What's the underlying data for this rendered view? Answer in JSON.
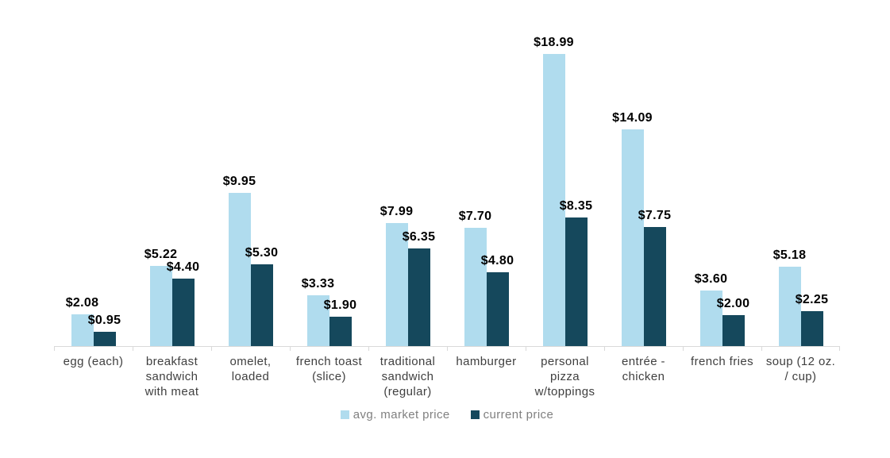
{
  "chart_data": {
    "type": "bar",
    "title": "",
    "xlabel": "",
    "ylabel": "",
    "ylim": [
      0,
      22.5
    ],
    "y_axis_visible": false,
    "gridlines": false,
    "legend_position": "bottom",
    "axis_color": "#D9D9D9",
    "data_label_color": "#000000",
    "category_label_color": "#404040",
    "legend_text_color": "#808080",
    "categories": [
      "egg (each)",
      "breakfast\nsandwich\nwith meat",
      "omelet,\nloaded",
      "french toast\n(slice)",
      "traditional\nsandwich\n(regular)",
      "hamburger",
      "personal\npizza\nw/toppings",
      "entrée -\nchicken",
      "french fries",
      "soup (12 oz.\n/ cup)"
    ],
    "series": [
      {
        "name": "avg. market price",
        "color": "#B0DCEE",
        "values": [
          2.08,
          5.22,
          9.95,
          3.33,
          7.99,
          7.7,
          18.99,
          14.09,
          3.6,
          5.18
        ],
        "labels": [
          "$2.08",
          "$5.22",
          "$9.95",
          "$3.33",
          "$7.99",
          "$7.70",
          "$18.99",
          "$14.09",
          "$3.60",
          "$5.18"
        ]
      },
      {
        "name": "current price",
        "color": "#15485C",
        "values": [
          0.95,
          4.4,
          5.3,
          1.9,
          6.35,
          4.8,
          8.35,
          7.75,
          2.0,
          2.25
        ],
        "labels": [
          "$0.95",
          "$4.40",
          "$5.30",
          "$1.90",
          "$6.35",
          "$4.80",
          "$8.35",
          "$7.75",
          "$2.00",
          "$2.25"
        ]
      }
    ]
  }
}
